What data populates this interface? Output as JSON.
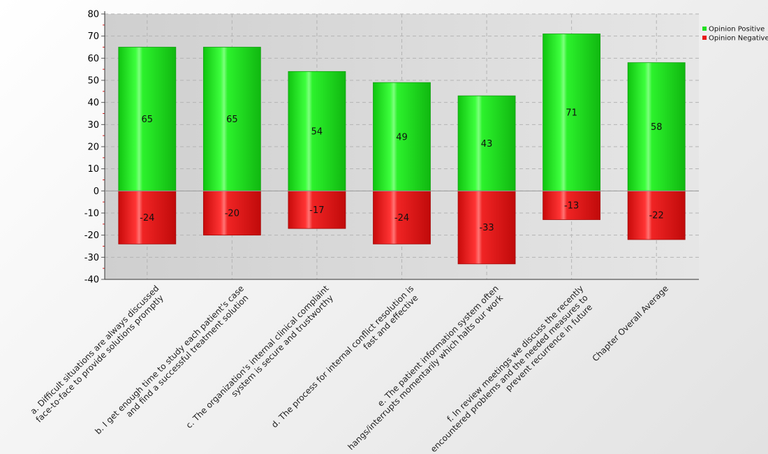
{
  "chart_data": {
    "type": "bar",
    "stacked": "diverging",
    "title": "",
    "xlabel": "",
    "ylabel": "",
    "ylim": [
      -40,
      80
    ],
    "yticks": [
      80,
      70,
      60,
      50,
      40,
      30,
      20,
      10,
      0,
      -10,
      -20,
      -30,
      -40
    ],
    "grid": true,
    "legend_position": "top-right",
    "categories": [
      [
        "a. Difficult situations are always discussed",
        "face-to-face to provide solutions promptly"
      ],
      [
        "b. I get enough time to study each patient's case",
        "and find a successful treatment solution"
      ],
      [
        "c. The organization's internal clinical complaint",
        "system is secure and trustworthy"
      ],
      [
        "d. The process for internal conflict resolution is",
        "fast and effective"
      ],
      [
        "e. The patient information system often",
        "hangs/interrupts momentarily which halts our work"
      ],
      [
        "f. In review meetings we discuss the recently",
        "encountered problems and the needed measures to",
        "prevent recurrence in future"
      ],
      [
        "Chapter Overall Average"
      ]
    ],
    "series": [
      {
        "name": "Opinion Positive",
        "color": "#22e022",
        "values": [
          65,
          65,
          54,
          49,
          43,
          71,
          58
        ]
      },
      {
        "name": "Opinion Negative",
        "color": "#e81818",
        "values": [
          -24,
          -20,
          -17,
          -24,
          -33,
          -13,
          -22
        ]
      }
    ]
  }
}
